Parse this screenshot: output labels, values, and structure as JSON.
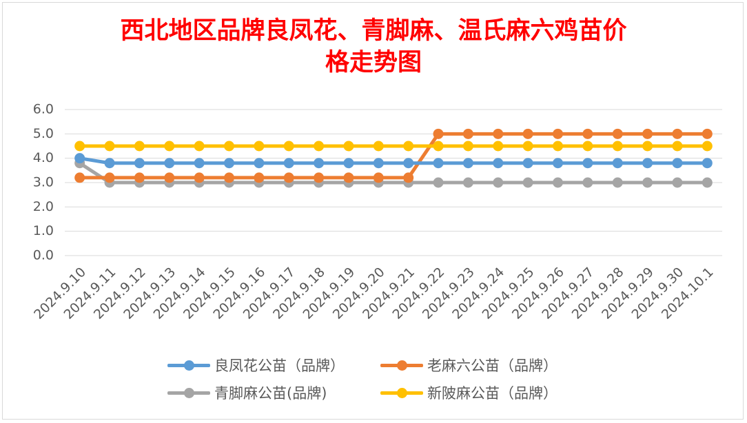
{
  "chart_data": {
    "type": "line",
    "title": "西北地区品牌良凤花、青脚麻、温氏麻六鸡苗价格走势图",
    "title_lines": [
      "西北地区品牌良凤花、青脚麻、温氏麻六鸡苗价",
      "格走势图"
    ],
    "title_color": "#ff0000",
    "xlabel": "",
    "ylabel": "",
    "ylim": [
      0,
      6
    ],
    "yticks": [
      "0.0",
      "1.0",
      "2.0",
      "3.0",
      "4.0",
      "5.0",
      "6.0"
    ],
    "grid": true,
    "legend_position": "bottom",
    "categories": [
      "2024.9.10",
      "2024.9.11",
      "2024.9.12",
      "2024.9.13",
      "2024.9.14",
      "2024.9.15",
      "2024.9.16",
      "2024.9.17",
      "2024.9.18",
      "2024.9.19",
      "2024.9.20",
      "2024.9.21",
      "2024.9.22",
      "2024.9.23",
      "2024.9.24",
      "2024.9.25",
      "2024.9.26",
      "2024.9.27",
      "2024.9.28",
      "2024.9.29",
      "2024.9.30",
      "2024.10.1"
    ],
    "series": [
      {
        "name": "良凤花公苗（品牌）",
        "color": "#5b9bd5",
        "values": [
          4.0,
          3.8,
          3.8,
          3.8,
          3.8,
          3.8,
          3.8,
          3.8,
          3.8,
          3.8,
          3.8,
          3.8,
          3.8,
          3.8,
          3.8,
          3.8,
          3.8,
          3.8,
          3.8,
          3.8,
          3.8,
          3.8
        ]
      },
      {
        "name": "老麻六公苗（品牌）",
        "color": "#ed7d31",
        "values": [
          3.2,
          3.2,
          3.2,
          3.2,
          3.2,
          3.2,
          3.2,
          3.2,
          3.2,
          3.2,
          3.2,
          3.2,
          5.0,
          5.0,
          5.0,
          5.0,
          5.0,
          5.0,
          5.0,
          5.0,
          5.0,
          5.0
        ]
      },
      {
        "name": "青脚麻公苗(品牌)",
        "color": "#a5a5a5",
        "values": [
          3.8,
          3.0,
          3.0,
          3.0,
          3.0,
          3.0,
          3.0,
          3.0,
          3.0,
          3.0,
          3.0,
          3.0,
          3.0,
          3.0,
          3.0,
          3.0,
          3.0,
          3.0,
          3.0,
          3.0,
          3.0,
          3.0
        ]
      },
      {
        "name": "新陂麻公苗（品牌）",
        "color": "#ffc000",
        "values": [
          4.5,
          4.5,
          4.5,
          4.5,
          4.5,
          4.5,
          4.5,
          4.5,
          4.5,
          4.5,
          4.5,
          4.5,
          4.5,
          4.5,
          4.5,
          4.5,
          4.5,
          4.5,
          4.5,
          4.5,
          4.5,
          4.5
        ]
      }
    ],
    "draw_order": [
      2,
      1,
      3,
      0
    ]
  }
}
